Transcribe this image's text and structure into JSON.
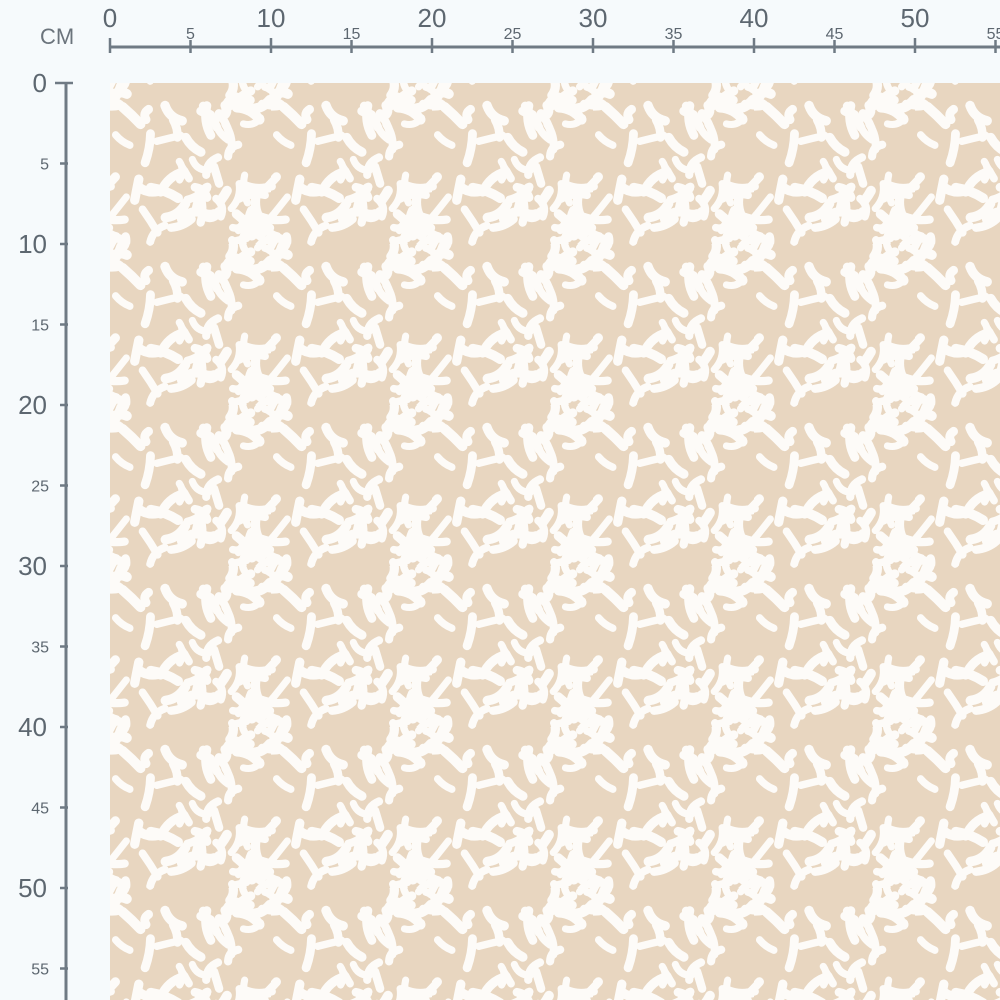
{
  "ruler": {
    "unit": "CM",
    "color": "#6f7a84",
    "top_labels": [
      "0",
      "5",
      "10",
      "15",
      "20",
      "25",
      "30",
      "35",
      "40",
      "45",
      "50",
      "55"
    ],
    "left_labels": [
      "0",
      "5",
      "10",
      "15",
      "20",
      "25",
      "30",
      "35",
      "40",
      "45",
      "50",
      "55"
    ]
  },
  "swatch": {
    "background_color": "#e8d6c0",
    "mark_color": "#fdfbf8",
    "pattern": "white-brushstroke-dashes"
  }
}
